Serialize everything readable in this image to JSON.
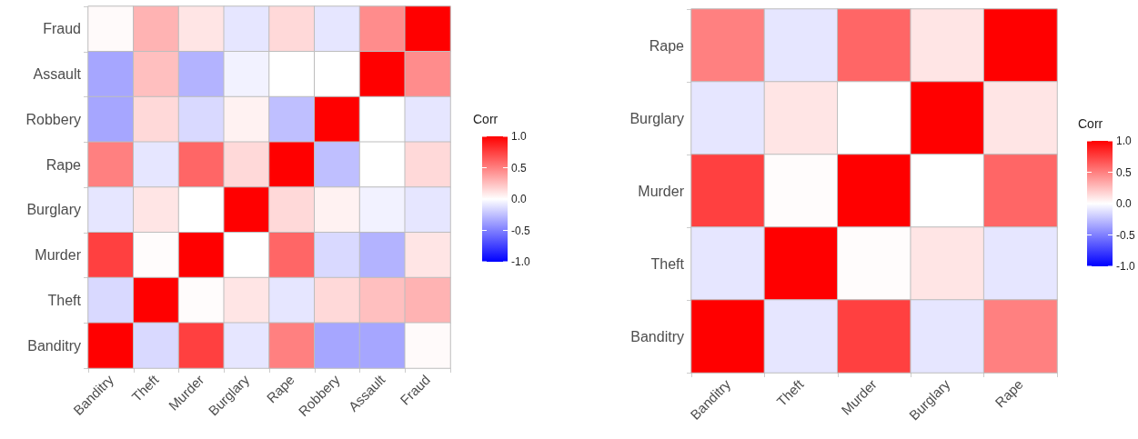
{
  "chart_data": [
    {
      "type": "heatmap",
      "clabel": "Corr",
      "clim": [
        -1,
        1
      ],
      "cticks": [
        {
          "value": -1,
          "label": "-1.0"
        },
        {
          "value": -0.5,
          "label": "-0.5"
        },
        {
          "value": 0,
          "label": "0.0"
        },
        {
          "value": 0.5,
          "label": "0.5"
        },
        {
          "value": 1,
          "label": "1.0"
        }
      ],
      "categories": [
        "Banditry",
        "Theft",
        "Murder",
        "Burglary",
        "Rape",
        "Robbery",
        "Assault",
        "Fraud"
      ],
      "y_categories": [
        "Fraud",
        "Assault",
        "Robbery",
        "Rape",
        "Burglary",
        "Murder",
        "Theft",
        "Banditry"
      ],
      "cells": [
        [
          0.02,
          0.3,
          0.1,
          -0.1,
          0.15,
          -0.1,
          0.45,
          1
        ],
        [
          -0.35,
          0.25,
          -0.3,
          -0.05,
          0,
          0,
          1,
          0.45
        ],
        [
          -0.35,
          0.15,
          -0.15,
          0.05,
          -0.25,
          1,
          0,
          -0.1
        ],
        [
          0.5,
          -0.1,
          0.6,
          0.15,
          1,
          -0.25,
          0,
          0.15
        ],
        [
          -0.1,
          0.1,
          0,
          1,
          0.15,
          0.05,
          -0.05,
          -0.1
        ],
        [
          0.75,
          0.01,
          1,
          0,
          0.6,
          -0.15,
          -0.3,
          0.1
        ],
        [
          -0.15,
          1,
          0.01,
          0.1,
          -0.1,
          0.15,
          0.25,
          0.3
        ],
        [
          1,
          -0.15,
          0.75,
          -0.1,
          0.5,
          -0.35,
          -0.35,
          0.02
        ]
      ]
    },
    {
      "type": "heatmap",
      "clabel": "Corr",
      "clim": [
        -1,
        1
      ],
      "cticks": [
        {
          "value": -1,
          "label": "-1.0"
        },
        {
          "value": -0.5,
          "label": "-0.5"
        },
        {
          "value": 0,
          "label": "0.0"
        },
        {
          "value": 0.5,
          "label": "0.5"
        },
        {
          "value": 1,
          "label": "1.0"
        }
      ],
      "categories": [
        "Banditry",
        "Theft",
        "Murder",
        "Burglary",
        "Rape"
      ],
      "y_categories": [
        "Rape",
        "Burglary",
        "Murder",
        "Theft",
        "Banditry"
      ],
      "cells": [
        [
          0.5,
          -0.1,
          0.6,
          0.1,
          1
        ],
        [
          -0.1,
          0.1,
          0,
          1,
          0.1
        ],
        [
          0.75,
          0.01,
          1,
          0,
          0.6
        ],
        [
          -0.1,
          1,
          0.01,
          0.1,
          -0.1
        ],
        [
          1,
          -0.1,
          0.75,
          -0.1,
          0.5
        ]
      ]
    }
  ]
}
